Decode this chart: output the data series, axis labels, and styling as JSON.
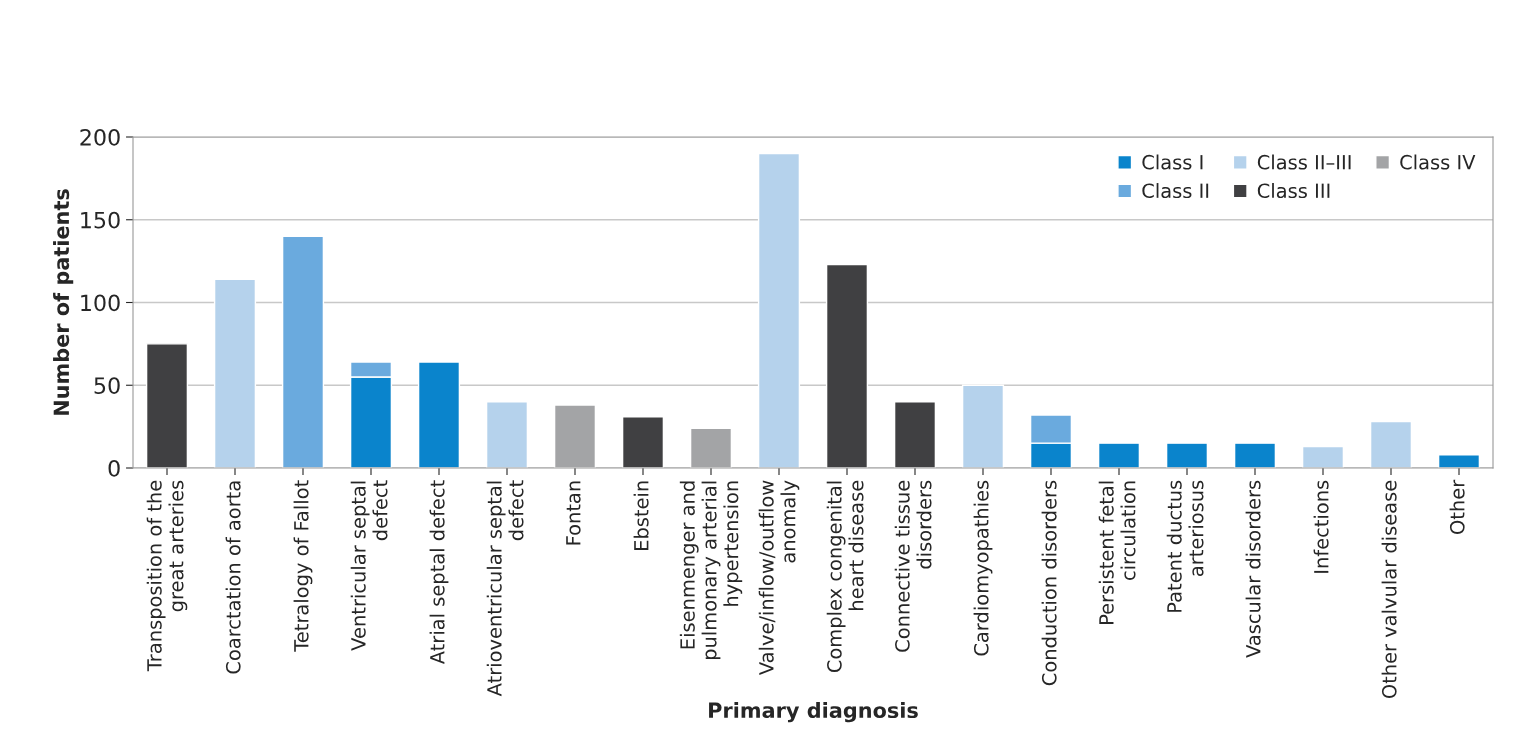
{
  "chart_data": {
    "type": "bar",
    "stacked": true,
    "xlabel": "Primary diagnosis",
    "ylabel": "Number of patients",
    "categories": [
      "Transposition of the\ngreat arteries",
      "Coarctation of aorta",
      "Tetralogy of Fallot",
      "Ventricular septal\ndefect",
      "Atrial septal defect",
      "Atrioventricular septal\ndefect",
      "Fontan",
      "Ebstein",
      "Eisenmenger and\npulmonary arterial\nhypertension",
      "Valve/inflow/outflow\nanomaly",
      "Complex congenital\nheart disease",
      "Connective tissue\ndisorders",
      "Cardiomyopathies",
      "Conduction disorders",
      "Persistent fetal\ncirculation",
      "Patent ductus\narteriosus",
      "Vascular disorders",
      "Infections",
      "Other valvular disease",
      "Other"
    ],
    "series": [
      {
        "name": "Class I",
        "color": "#0a84cc",
        "values": [
          null,
          null,
          null,
          55,
          64,
          null,
          null,
          null,
          null,
          null,
          null,
          null,
          null,
          15,
          15,
          15,
          15,
          null,
          null,
          8
        ]
      },
      {
        "name": "Class II",
        "color": "#6aaade",
        "values": [
          null,
          null,
          140,
          9,
          null,
          null,
          null,
          null,
          null,
          null,
          null,
          null,
          null,
          17,
          null,
          null,
          null,
          null,
          null,
          null
        ]
      },
      {
        "name": "Class II–III",
        "color": "#b5d2ec",
        "values": [
          null,
          114,
          null,
          null,
          null,
          40,
          null,
          null,
          null,
          190,
          null,
          null,
          50,
          null,
          null,
          null,
          null,
          13,
          28,
          null
        ]
      },
      {
        "name": "Class III",
        "color": "#404042",
        "values": [
          75,
          null,
          null,
          null,
          null,
          null,
          null,
          31,
          null,
          null,
          123,
          40,
          null,
          null,
          null,
          null,
          null,
          null,
          null,
          null
        ]
      },
      {
        "name": "Class IV",
        "color": "#a3a4a6",
        "values": [
          null,
          null,
          null,
          null,
          null,
          null,
          38,
          null,
          24,
          null,
          null,
          null,
          null,
          null,
          null,
          null,
          null,
          null,
          null,
          null
        ]
      }
    ],
    "ylim": [
      0,
      200
    ],
    "yticks": [
      0,
      50,
      100,
      150,
      200
    ],
    "grid": "y",
    "legend": "top right"
  }
}
